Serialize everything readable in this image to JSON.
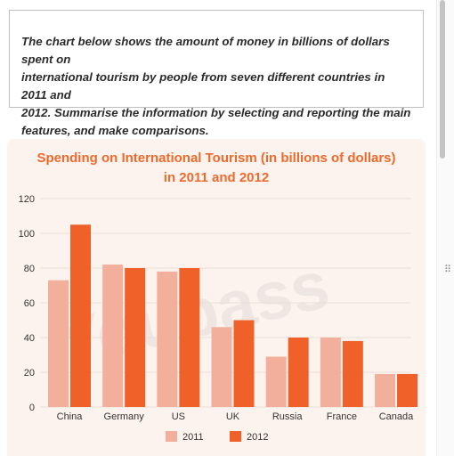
{
  "prompt": {
    "line1": "The chart below shows the amount of money in billions of dollars spent on",
    "line2": "international tourism by people from seven different countries in 2011 and",
    "line3": "2012. Summarise the information by selecting and reporting the main",
    "line4": "features, and make comparisons."
  },
  "watermark": "Youpass",
  "colors": {
    "s2011": "#f2b09c",
    "s2012": "#f0612a",
    "title": "#ee6a2c",
    "grid": "#e9dcd5",
    "text": "#333333"
  },
  "chart_data": {
    "type": "bar",
    "title": [
      "Spending on International Tourism (in billions of dollars)",
      "in 2011 and 2012"
    ],
    "categories": [
      "China",
      "Germany",
      "US",
      "UK",
      "Russia",
      "France",
      "Canada"
    ],
    "series": [
      {
        "name": "2011",
        "values": [
          73,
          82,
          78,
          46,
          29,
          40,
          19
        ]
      },
      {
        "name": "2012",
        "values": [
          105,
          80,
          80,
          50,
          40,
          38,
          19
        ]
      }
    ],
    "ylim": [
      0,
      120
    ],
    "yticks": [
      0,
      20,
      40,
      60,
      80,
      100,
      120
    ],
    "grid": true,
    "legend": "bottom-center"
  }
}
